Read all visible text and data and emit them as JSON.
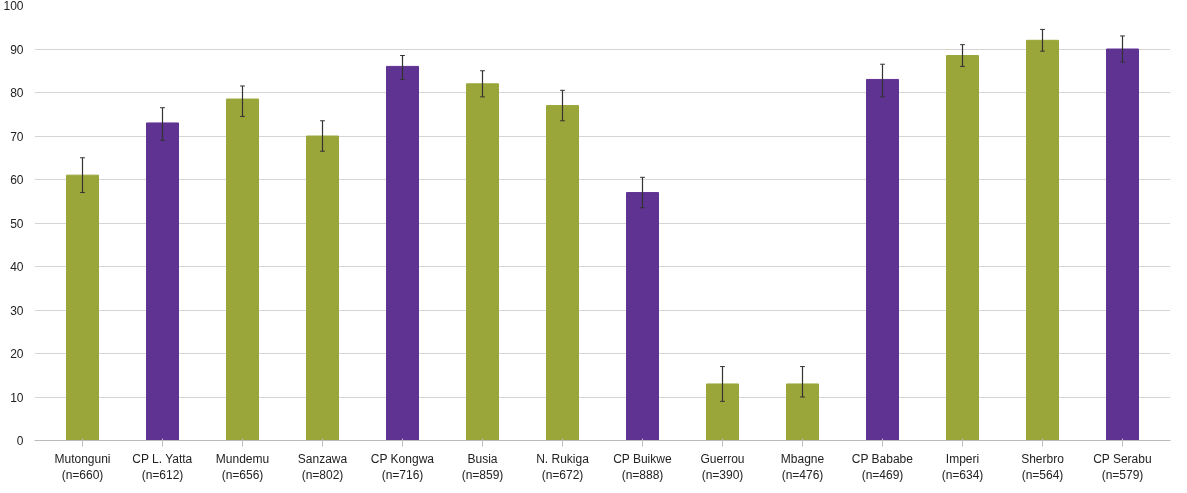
{
  "chart_data": {
    "type": "bar",
    "categories": [
      "Mutonguni\n(n=660)",
      "CP L. Yatta\n(n=612)",
      "Mundemu\n(n=656)",
      "Sanzawa\n(n=802)",
      "CP Kongwa\n(n=716)",
      "Busia\n(n=859)",
      "N. Rukiga\n(n=672)",
      "CP Buikwe\n(n=888)",
      "Guerrou\n(n=390)",
      "Mbagne\n(n=476)",
      "CP Bababe\n(n=469)",
      "Imperi\n(n=634)",
      "Sherbro\n(n=564)",
      "CP Serabu\n(n=579)"
    ],
    "values": [
      61,
      73,
      78.5,
      70,
      86,
      82,
      77,
      57,
      13,
      13,
      83,
      88.5,
      92,
      90
    ],
    "colors": [
      "#9ba63a",
      "#5f3392",
      "#9ba63a",
      "#9ba63a",
      "#5f3392",
      "#9ba63a",
      "#9ba63a",
      "#5f3392",
      "#9ba63a",
      "#9ba63a",
      "#5f3392",
      "#9ba63a",
      "#9ba63a",
      "#5f3392"
    ],
    "errors": [
      [
        57,
        65
      ],
      [
        69,
        76.5
      ],
      [
        74.5,
        81.5
      ],
      [
        66.5,
        73.5
      ],
      [
        83,
        88.5
      ],
      [
        79,
        85
      ],
      [
        73.5,
        80.5
      ],
      [
        53.5,
        60.5
      ],
      [
        9,
        17
      ],
      [
        10,
        17
      ],
      [
        79,
        86.5
      ],
      [
        86,
        91
      ],
      [
        89.5,
        94.5
      ],
      [
        87,
        93
      ]
    ],
    "ylim": [
      0,
      100
    ],
    "yticks": [
      0,
      10,
      20,
      30,
      40,
      50,
      60,
      70,
      80,
      90,
      100
    ],
    "grid": "y"
  }
}
